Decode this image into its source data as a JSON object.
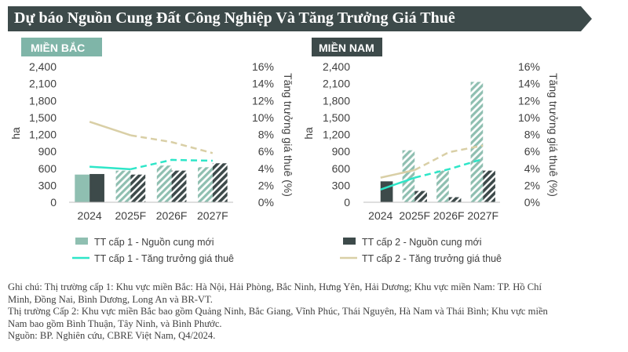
{
  "title": "Dự báo Nguồn Cung Đất Công Nghiệp Và Tăng Trưởng Giá Thuê",
  "colors": {
    "title_bg": "#3d4a4a",
    "north_header": "#7fb5a8",
    "south_header": "#3d4a4a",
    "tier1_supply": "#8fbfb1",
    "tier2_supply": "#3d4a4a",
    "tier1_growth": "#2ee6c8",
    "tier2_growth": "#d9cfa6"
  },
  "chart_data": [
    {
      "type": "bar",
      "panel": "MIỀN BẮC",
      "categories": [
        "2024",
        "2025F",
        "2026F",
        "2027F"
      ],
      "series": [
        {
          "name": "TT cấp 1 - Nguồn cung mới",
          "kind": "bar",
          "axis": "left",
          "values": [
            490,
            560,
            650,
            620
          ]
        },
        {
          "name": "TT cấp 2 - Nguồn cung mới",
          "kind": "bar",
          "axis": "left",
          "values": [
            500,
            490,
            560,
            690
          ]
        },
        {
          "name": "TT cấp 1 - Tăng trưởng giá thuê",
          "kind": "line",
          "axis": "right",
          "values": [
            4.2,
            3.9,
            5.0,
            4.9
          ]
        },
        {
          "name": "TT cấp 2 - Tăng trưởng giá thuê",
          "kind": "line",
          "axis": "right",
          "values": [
            9.5,
            7.9,
            7.1,
            5.8
          ]
        }
      ],
      "ylabel": "ha",
      "y2label": "Tăng trưởng giá thuê (%)",
      "ylim": [
        0,
        2400
      ],
      "y2lim": [
        0,
        16
      ],
      "yticks": [
        "0",
        "300",
        "600",
        "900",
        "1,200",
        "1,500",
        "1,800",
        "2,100",
        "2,400"
      ],
      "y2ticks": [
        "0%",
        "2%",
        "4%",
        "6%",
        "8%",
        "10%",
        "12%",
        "14%",
        "16%"
      ]
    },
    {
      "type": "bar",
      "panel": "MIỀN NAM",
      "categories": [
        "2024",
        "2025F",
        "2026F",
        "2027F"
      ],
      "series": [
        {
          "name": "TT cấp 1 - Nguồn cung mới",
          "kind": "bar",
          "axis": "left",
          "values": [
            0,
            920,
            560,
            2130
          ]
        },
        {
          "name": "TT cấp 2 - Nguồn cung mới",
          "kind": "bar",
          "axis": "left",
          "values": [
            370,
            200,
            90,
            560
          ]
        },
        {
          "name": "TT cấp 1 - Tăng trưởng giá thuê",
          "kind": "line",
          "axis": "right",
          "values": [
            1.5,
            2.9,
            3.9,
            5.1
          ]
        },
        {
          "name": "TT cấp 2 - Tăng trưởng giá thuê",
          "kind": "line",
          "axis": "right",
          "values": [
            2.9,
            3.8,
            5.9,
            6.7
          ]
        }
      ],
      "ylabel": "ha",
      "y2label": "Tăng trưởng giá thuê (%)",
      "ylim": [
        0,
        2400
      ],
      "y2lim": [
        0,
        16
      ],
      "yticks": [
        "0",
        "300",
        "600",
        "900",
        "1,200",
        "1,500",
        "1,800",
        "2,100",
        "2,400"
      ],
      "y2ticks": [
        "0%",
        "2%",
        "4%",
        "6%",
        "8%",
        "10%",
        "12%",
        "14%",
        "16%"
      ]
    }
  ],
  "legend": [
    {
      "label": "TT cấp 1 -  Nguồn cung mới",
      "kind": "bar",
      "color": "#8fbfb1"
    },
    {
      "label": "TT cấp 2 - Nguồn cung mới",
      "kind": "bar",
      "color": "#3d4a4a"
    },
    {
      "label": "TT cấp 1 -  Tăng trưởng giá thuê",
      "kind": "line",
      "color": "#2ee6c8"
    },
    {
      "label": "TT cấp 2 -  Tăng trưởng giá thuê",
      "kind": "line",
      "color": "#d9cfa6"
    }
  ],
  "notes": {
    "line1": "Ghi chú: Thị trường cấp 1: Khu vực miền Bắc: Hà Nội, Hải Phòng, Bắc Ninh, Hưng Yên, Hải Dương; Khu vực miền Nam: TP. Hồ Chí",
    "line2": "Minh, Đồng Nai, Bình Dương, Long An và BR-VT.",
    "line3": "Thị trường Cấp 2: Khu vực miền Bắc bao gồm Quảng Ninh, Bắc Giang, Vĩnh Phúc, Thái Nguyên, Hà Nam và Thái Bình; Khu vực miền",
    "line4": "Nam bao gồm Bình Thuận, Tây Ninh, và Bình Phước.",
    "line5": "Nguồn: BP. Nghiên cứu, CBRE Việt Nam, Q4/2024."
  }
}
